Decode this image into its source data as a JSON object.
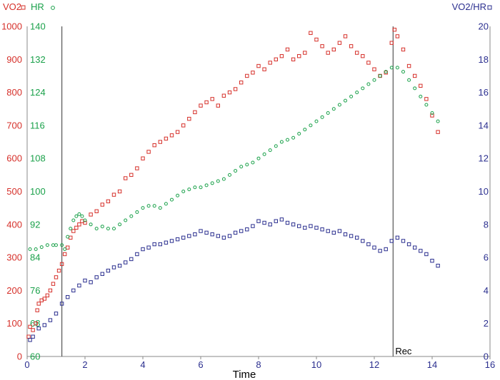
{
  "chart_data": {
    "type": "scatter",
    "xlabel": "Time",
    "xlim": [
      0,
      16
    ],
    "xticks": [
      "0",
      "2",
      "4",
      "6",
      "8",
      "10",
      "12",
      "14",
      "16"
    ],
    "axes": {
      "vo2": {
        "title": "VO2",
        "color": "#d6302a",
        "ylim": [
          0,
          1000
        ],
        "ticks": [
          "0",
          "100",
          "200",
          "300",
          "400",
          "500",
          "600",
          "700",
          "800",
          "900",
          "1000"
        ]
      },
      "hr": {
        "title": "HR",
        "color": "#1aa14a",
        "ylim": [
          60,
          140
        ],
        "ticks": [
          "60",
          "68",
          "76",
          "84",
          "92",
          "100",
          "108",
          "116",
          "124",
          "132",
          "140"
        ]
      },
      "vo2hr": {
        "title": "VO2/HR",
        "color": "#2b2f8f",
        "ylim": [
          0,
          20
        ],
        "ticks": [
          "0",
          "2",
          "4",
          "6",
          "8",
          "10",
          "12",
          "14",
          "16",
          "18",
          "20"
        ]
      }
    },
    "annotations": {
      "exercise_start_x": 1.2,
      "recovery_start_x": 12.65,
      "recovery_label": "Rec"
    },
    "series": [
      {
        "name": "VO2",
        "axis": "vo2",
        "marker": "square",
        "points": [
          [
            0.05,
            60
          ],
          [
            0.1,
            90
          ],
          [
            0.2,
            80
          ],
          [
            0.3,
            100
          ],
          [
            0.35,
            140
          ],
          [
            0.4,
            160
          ],
          [
            0.5,
            170
          ],
          [
            0.6,
            175
          ],
          [
            0.7,
            185
          ],
          [
            0.8,
            200
          ],
          [
            0.9,
            220
          ],
          [
            1.0,
            240
          ],
          [
            1.1,
            260
          ],
          [
            1.2,
            280
          ],
          [
            1.3,
            310
          ],
          [
            1.4,
            330
          ],
          [
            1.5,
            360
          ],
          [
            1.6,
            380
          ],
          [
            1.7,
            390
          ],
          [
            1.8,
            400
          ],
          [
            1.9,
            410
          ],
          [
            2.0,
            405
          ],
          [
            2.2,
            430
          ],
          [
            2.4,
            440
          ],
          [
            2.6,
            460
          ],
          [
            2.8,
            470
          ],
          [
            3.0,
            490
          ],
          [
            3.2,
            500
          ],
          [
            3.4,
            540
          ],
          [
            3.6,
            550
          ],
          [
            3.8,
            570
          ],
          [
            4.0,
            600
          ],
          [
            4.2,
            620
          ],
          [
            4.4,
            640
          ],
          [
            4.6,
            650
          ],
          [
            4.8,
            660
          ],
          [
            5.0,
            670
          ],
          [
            5.2,
            680
          ],
          [
            5.4,
            700
          ],
          [
            5.6,
            720
          ],
          [
            5.8,
            740
          ],
          [
            6.0,
            760
          ],
          [
            6.2,
            770
          ],
          [
            6.4,
            780
          ],
          [
            6.6,
            760
          ],
          [
            6.8,
            790
          ],
          [
            7.0,
            800
          ],
          [
            7.2,
            810
          ],
          [
            7.4,
            830
          ],
          [
            7.6,
            850
          ],
          [
            7.8,
            860
          ],
          [
            8.0,
            880
          ],
          [
            8.2,
            870
          ],
          [
            8.4,
            890
          ],
          [
            8.6,
            900
          ],
          [
            8.8,
            910
          ],
          [
            9.0,
            930
          ],
          [
            9.2,
            900
          ],
          [
            9.4,
            910
          ],
          [
            9.6,
            920
          ],
          [
            9.8,
            980
          ],
          [
            10.0,
            960
          ],
          [
            10.2,
            940
          ],
          [
            10.4,
            920
          ],
          [
            10.6,
            930
          ],
          [
            10.8,
            950
          ],
          [
            11.0,
            970
          ],
          [
            11.2,
            940
          ],
          [
            11.4,
            920
          ],
          [
            11.6,
            910
          ],
          [
            11.8,
            890
          ],
          [
            12.0,
            870
          ],
          [
            12.2,
            850
          ],
          [
            12.4,
            860
          ],
          [
            12.6,
            950
          ],
          [
            12.7,
            990
          ],
          [
            12.8,
            970
          ],
          [
            13.0,
            930
          ],
          [
            13.2,
            880
          ],
          [
            13.4,
            850
          ],
          [
            13.6,
            820
          ],
          [
            13.8,
            780
          ],
          [
            14.0,
            730
          ],
          [
            14.2,
            680
          ]
        ]
      },
      {
        "name": "HR",
        "axis": "hr",
        "marker": "circle",
        "points": [
          [
            0.1,
            86
          ],
          [
            0.3,
            86
          ],
          [
            0.5,
            86.5
          ],
          [
            0.7,
            87
          ],
          [
            0.9,
            87
          ],
          [
            1.0,
            87
          ],
          [
            1.2,
            87
          ],
          [
            1.3,
            86
          ],
          [
            1.4,
            89
          ],
          [
            1.5,
            91
          ],
          [
            1.6,
            93
          ],
          [
            1.7,
            94
          ],
          [
            1.8,
            94.5
          ],
          [
            1.9,
            94
          ],
          [
            2.0,
            93
          ],
          [
            2.2,
            92
          ],
          [
            2.4,
            91
          ],
          [
            2.6,
            91.5
          ],
          [
            2.8,
            91
          ],
          [
            3.0,
            91
          ],
          [
            3.2,
            92
          ],
          [
            3.4,
            93
          ],
          [
            3.6,
            94
          ],
          [
            3.8,
            95
          ],
          [
            4.0,
            96
          ],
          [
            4.2,
            96.5
          ],
          [
            4.4,
            96.5
          ],
          [
            4.6,
            96
          ],
          [
            4.8,
            97
          ],
          [
            5.0,
            98
          ],
          [
            5.2,
            99
          ],
          [
            5.4,
            100
          ],
          [
            5.6,
            100.5
          ],
          [
            5.8,
            101
          ],
          [
            6.0,
            101
          ],
          [
            6.2,
            101.5
          ],
          [
            6.4,
            102
          ],
          [
            6.6,
            102.5
          ],
          [
            6.8,
            103
          ],
          [
            7.0,
            104
          ],
          [
            7.2,
            105
          ],
          [
            7.4,
            106
          ],
          [
            7.6,
            106.5
          ],
          [
            7.8,
            107
          ],
          [
            8.0,
            108
          ],
          [
            8.2,
            109
          ],
          [
            8.4,
            110
          ],
          [
            8.6,
            111
          ],
          [
            8.8,
            112
          ],
          [
            9.0,
            112.5
          ],
          [
            9.2,
            113
          ],
          [
            9.4,
            114
          ],
          [
            9.6,
            115
          ],
          [
            9.8,
            116
          ],
          [
            10.0,
            117
          ],
          [
            10.2,
            118
          ],
          [
            10.4,
            119
          ],
          [
            10.6,
            120
          ],
          [
            10.8,
            121
          ],
          [
            11.0,
            122
          ],
          [
            11.2,
            123
          ],
          [
            11.4,
            124
          ],
          [
            11.6,
            125
          ],
          [
            11.8,
            126
          ],
          [
            12.0,
            127
          ],
          [
            12.2,
            128
          ],
          [
            12.4,
            129
          ],
          [
            12.6,
            130
          ],
          [
            12.8,
            130
          ],
          [
            13.0,
            129
          ],
          [
            13.2,
            127
          ],
          [
            13.4,
            125
          ],
          [
            13.6,
            123
          ],
          [
            13.8,
            121
          ],
          [
            14.0,
            119
          ],
          [
            14.2,
            117
          ]
        ]
      },
      {
        "name": "VO2/HR",
        "axis": "vo2hr",
        "marker": "square",
        "points": [
          [
            0.1,
            1.0
          ],
          [
            0.2,
            1.2
          ],
          [
            0.4,
            1.7
          ],
          [
            0.6,
            1.9
          ],
          [
            0.8,
            2.2
          ],
          [
            1.0,
            2.6
          ],
          [
            1.2,
            3.2
          ],
          [
            1.4,
            3.6
          ],
          [
            1.6,
            4.0
          ],
          [
            1.8,
            4.3
          ],
          [
            2.0,
            4.6
          ],
          [
            2.2,
            4.5
          ],
          [
            2.4,
            4.8
          ],
          [
            2.6,
            5.0
          ],
          [
            2.8,
            5.2
          ],
          [
            3.0,
            5.4
          ],
          [
            3.2,
            5.5
          ],
          [
            3.4,
            5.7
          ],
          [
            3.6,
            5.9
          ],
          [
            3.8,
            6.2
          ],
          [
            4.0,
            6.5
          ],
          [
            4.2,
            6.6
          ],
          [
            4.4,
            6.8
          ],
          [
            4.6,
            6.8
          ],
          [
            4.8,
            6.9
          ],
          [
            5.0,
            7.0
          ],
          [
            5.2,
            7.1
          ],
          [
            5.4,
            7.2
          ],
          [
            5.6,
            7.3
          ],
          [
            5.8,
            7.4
          ],
          [
            6.0,
            7.6
          ],
          [
            6.2,
            7.5
          ],
          [
            6.4,
            7.4
          ],
          [
            6.6,
            7.3
          ],
          [
            6.8,
            7.2
          ],
          [
            7.0,
            7.3
          ],
          [
            7.2,
            7.5
          ],
          [
            7.4,
            7.6
          ],
          [
            7.6,
            7.7
          ],
          [
            7.8,
            7.9
          ],
          [
            8.0,
            8.2
          ],
          [
            8.2,
            8.1
          ],
          [
            8.4,
            8.0
          ],
          [
            8.6,
            8.2
          ],
          [
            8.8,
            8.3
          ],
          [
            9.0,
            8.1
          ],
          [
            9.2,
            8.0
          ],
          [
            9.4,
            7.9
          ],
          [
            9.6,
            7.8
          ],
          [
            9.8,
            7.9
          ],
          [
            10.0,
            7.8
          ],
          [
            10.2,
            7.7
          ],
          [
            10.4,
            7.6
          ],
          [
            10.6,
            7.5
          ],
          [
            10.8,
            7.6
          ],
          [
            11.0,
            7.4
          ],
          [
            11.2,
            7.3
          ],
          [
            11.4,
            7.2
          ],
          [
            11.6,
            7.0
          ],
          [
            11.8,
            6.8
          ],
          [
            12.0,
            6.6
          ],
          [
            12.2,
            6.4
          ],
          [
            12.4,
            6.5
          ],
          [
            12.6,
            7.0
          ],
          [
            12.8,
            7.2
          ],
          [
            13.0,
            7.0
          ],
          [
            13.2,
            6.8
          ],
          [
            13.4,
            6.6
          ],
          [
            13.6,
            6.4
          ],
          [
            13.8,
            6.2
          ],
          [
            14.0,
            5.8
          ],
          [
            14.2,
            5.5
          ]
        ]
      }
    ]
  }
}
